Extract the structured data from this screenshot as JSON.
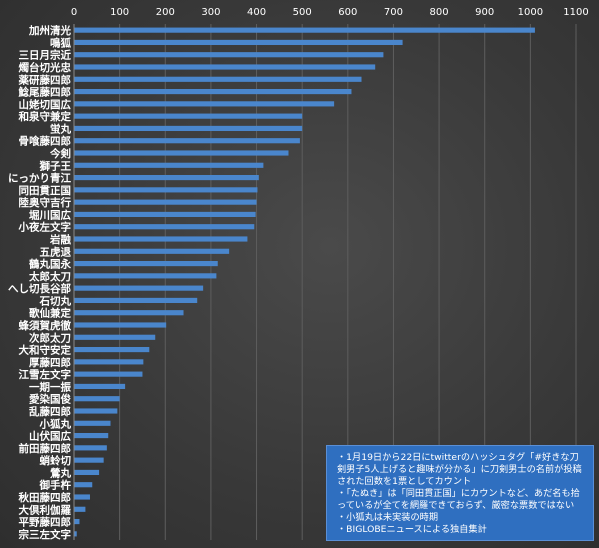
{
  "chart_data": {
    "type": "bar",
    "orientation": "horizontal",
    "xlim": [
      0,
      1100
    ],
    "xticks": [
      "0",
      "100",
      "200",
      "300",
      "400",
      "500",
      "600",
      "700",
      "800",
      "900",
      "1000",
      "1100"
    ],
    "grid": "vertical",
    "bar_color": "#4a86cc",
    "categories": [
      "加州清光",
      "鳴狐",
      "三日月宗近",
      "燭台切光忠",
      "薬研藤四郎",
      "鯰尾藤四郎",
      "山姥切国広",
      "和泉守兼定",
      "蛍丸",
      "骨喰藤四郎",
      "今剣",
      "獅子王",
      "にっかり青江",
      "同田貫正国",
      "陸奥守吉行",
      "堀川国広",
      "小夜左文字",
      "岩融",
      "五虎退",
      "鶴丸国永",
      "太郎太刀",
      "へし切長谷部",
      "石切丸",
      "歌仙兼定",
      "蜂須賀虎徹",
      "次郎太刀",
      "大和守安定",
      "厚藤四郎",
      "江雪左文字",
      "一期一振",
      "愛染国俊",
      "乱藤四郎",
      "小狐丸",
      "山伏国広",
      "前田藤四郎",
      "蛸蛉切",
      "鶯丸",
      "御手杵",
      "秋田藤四郎",
      "大倶利伽羅",
      "平野藤四郎",
      "宗三左文字"
    ],
    "values": [
      1010,
      720,
      678,
      660,
      630,
      608,
      570,
      500,
      500,
      495,
      470,
      415,
      405,
      402,
      400,
      398,
      395,
      380,
      340,
      315,
      312,
      283,
      270,
      240,
      202,
      178,
      165,
      152,
      150,
      112,
      100,
      95,
      80,
      75,
      72,
      65,
      55,
      40,
      35,
      25,
      12,
      6
    ]
  },
  "notes": {
    "line1": "・1月19日から22日にtwitterのハッシュタグ「#好きな刀剣男子5人上げると趣味が分かる」に刀剣男士の名前が投稿された回数を1票としてカウント",
    "line2": "・「たぬき」は「同田貫正国」にカウントなど、あだ名も拾っているが全てを網羅できておらず、厳密な票数ではない",
    "line3": "・小狐丸は未実装の時期",
    "line4": "・BIGLOBEニュースによる独自集計"
  }
}
